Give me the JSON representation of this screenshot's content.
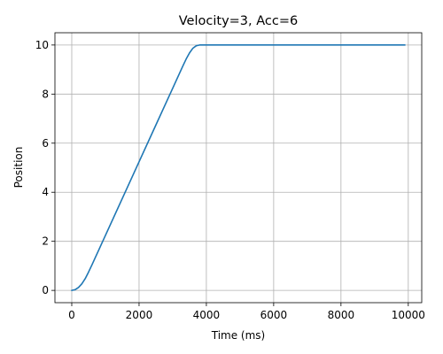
{
  "chart_data": {
    "type": "line",
    "title": "Velocity=3, Acc=6",
    "xlabel": "Time (ms)",
    "ylabel": "Position",
    "xlim": [
      -500,
      10400
    ],
    "ylim": [
      -0.5,
      10.5
    ],
    "xticks": [
      0,
      2000,
      4000,
      6000,
      8000,
      10000
    ],
    "yticks": [
      0,
      2,
      4,
      6,
      8,
      10
    ],
    "xtick_labels": [
      "0",
      "2000",
      "4000",
      "6000",
      "8000",
      "10000"
    ],
    "ytick_labels": [
      "0",
      "2",
      "4",
      "6",
      "8",
      "10"
    ],
    "grid": true,
    "series": [
      {
        "color": "#1f77b4",
        "x": [
          0,
          100,
          200,
          300,
          400,
          500,
          600,
          700,
          800,
          900,
          1000,
          1500,
          2000,
          2500,
          3000,
          3300,
          3400,
          3500,
          3600,
          3700,
          3800,
          3900,
          4000,
          5000,
          6000,
          7000,
          8000,
          9000,
          9900
        ],
        "y": [
          0,
          0.03,
          0.12,
          0.27,
          0.48,
          0.75,
          1.04,
          1.34,
          1.64,
          1.94,
          2.24,
          3.74,
          5.24,
          6.74,
          8.24,
          9.14,
          9.43,
          9.68,
          9.87,
          9.97,
          10.0,
          10.0,
          10.0,
          10.0,
          10.0,
          10.0,
          10.0,
          10.0,
          10.0
        ]
      }
    ]
  }
}
